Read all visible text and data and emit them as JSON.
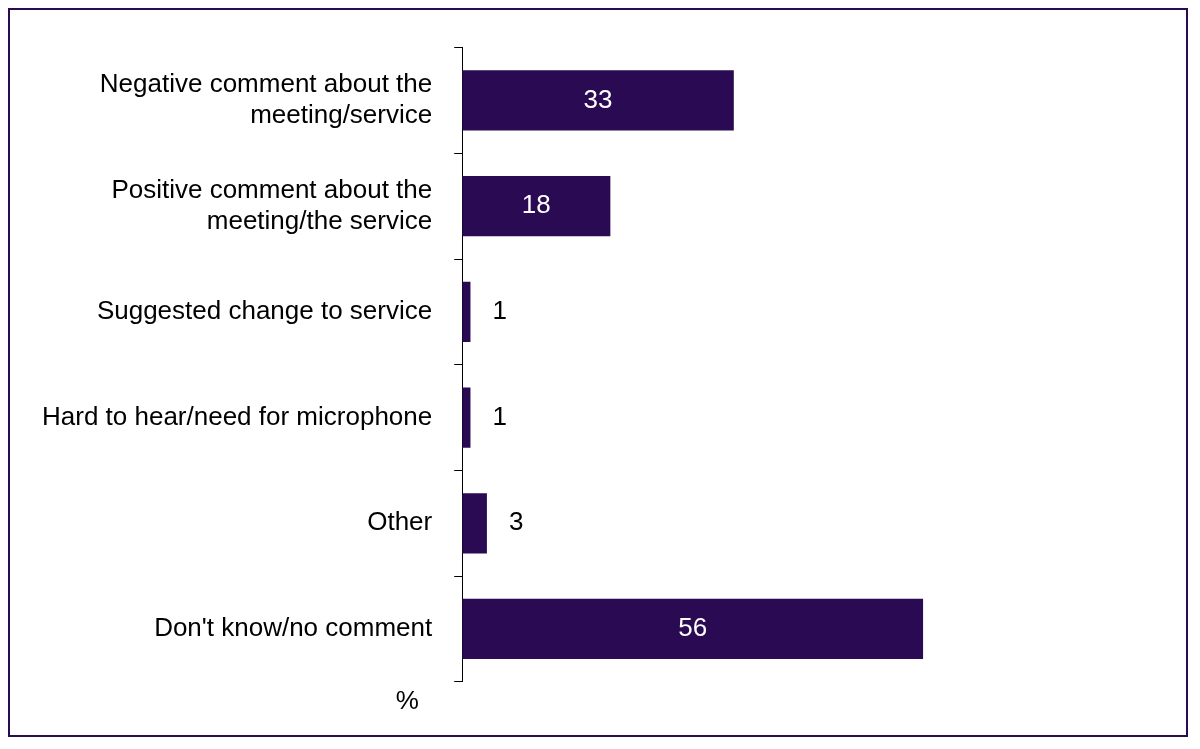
{
  "chart_data": {
    "type": "bar",
    "orientation": "horizontal",
    "xlabel": "%",
    "categories": [
      "Negative comment about the meeting/service",
      "Positive comment about the meeting/the service",
      "Suggested change to service",
      "Hard to hear/need for microphone",
      "Other",
      "Don't know/no comment"
    ],
    "values": [
      33,
      18,
      1,
      1,
      3,
      56
    ],
    "color": "#2a0a52",
    "data_labels": true,
    "grid": false,
    "legend": false
  }
}
